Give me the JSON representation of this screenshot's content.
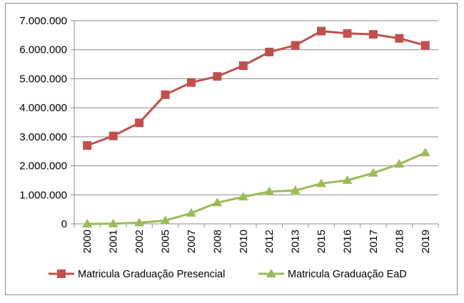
{
  "chart_data": {
    "type": "line",
    "title": "",
    "xlabel": "",
    "ylabel": "",
    "categories": [
      "2000",
      "2001",
      "2002",
      "2005",
      "2007",
      "2008",
      "2010",
      "2012",
      "2013",
      "2015",
      "2016",
      "2017",
      "2018",
      "2019"
    ],
    "ylim": [
      0,
      7000000
    ],
    "yticks": [
      0,
      1000000,
      2000000,
      3000000,
      4000000,
      5000000,
      6000000,
      7000000
    ],
    "ytick_labels": [
      "0",
      "1.000.000",
      "2.000.000",
      "3.000.000",
      "4.000.000",
      "5.000.000",
      "6.000.000",
      "7.000.000"
    ],
    "grid": "horizontal",
    "legend_position": "bottom",
    "series": [
      {
        "name": "Matricula Graduação  Presencial",
        "color": "#c0504d",
        "marker": "square",
        "values": [
          2700000,
          3030000,
          3480000,
          4450000,
          4870000,
          5080000,
          5450000,
          5920000,
          6150000,
          6640000,
          6560000,
          6530000,
          6390000,
          6150000
        ]
      },
      {
        "name": "Matricula Graduação EaD",
        "color": "#9bbb59",
        "marker": "triangle",
        "values": [
          0,
          5000,
          40000,
          115000,
          370000,
          730000,
          930000,
          1110000,
          1150000,
          1390000,
          1500000,
          1750000,
          2060000,
          2450000
        ]
      }
    ]
  }
}
